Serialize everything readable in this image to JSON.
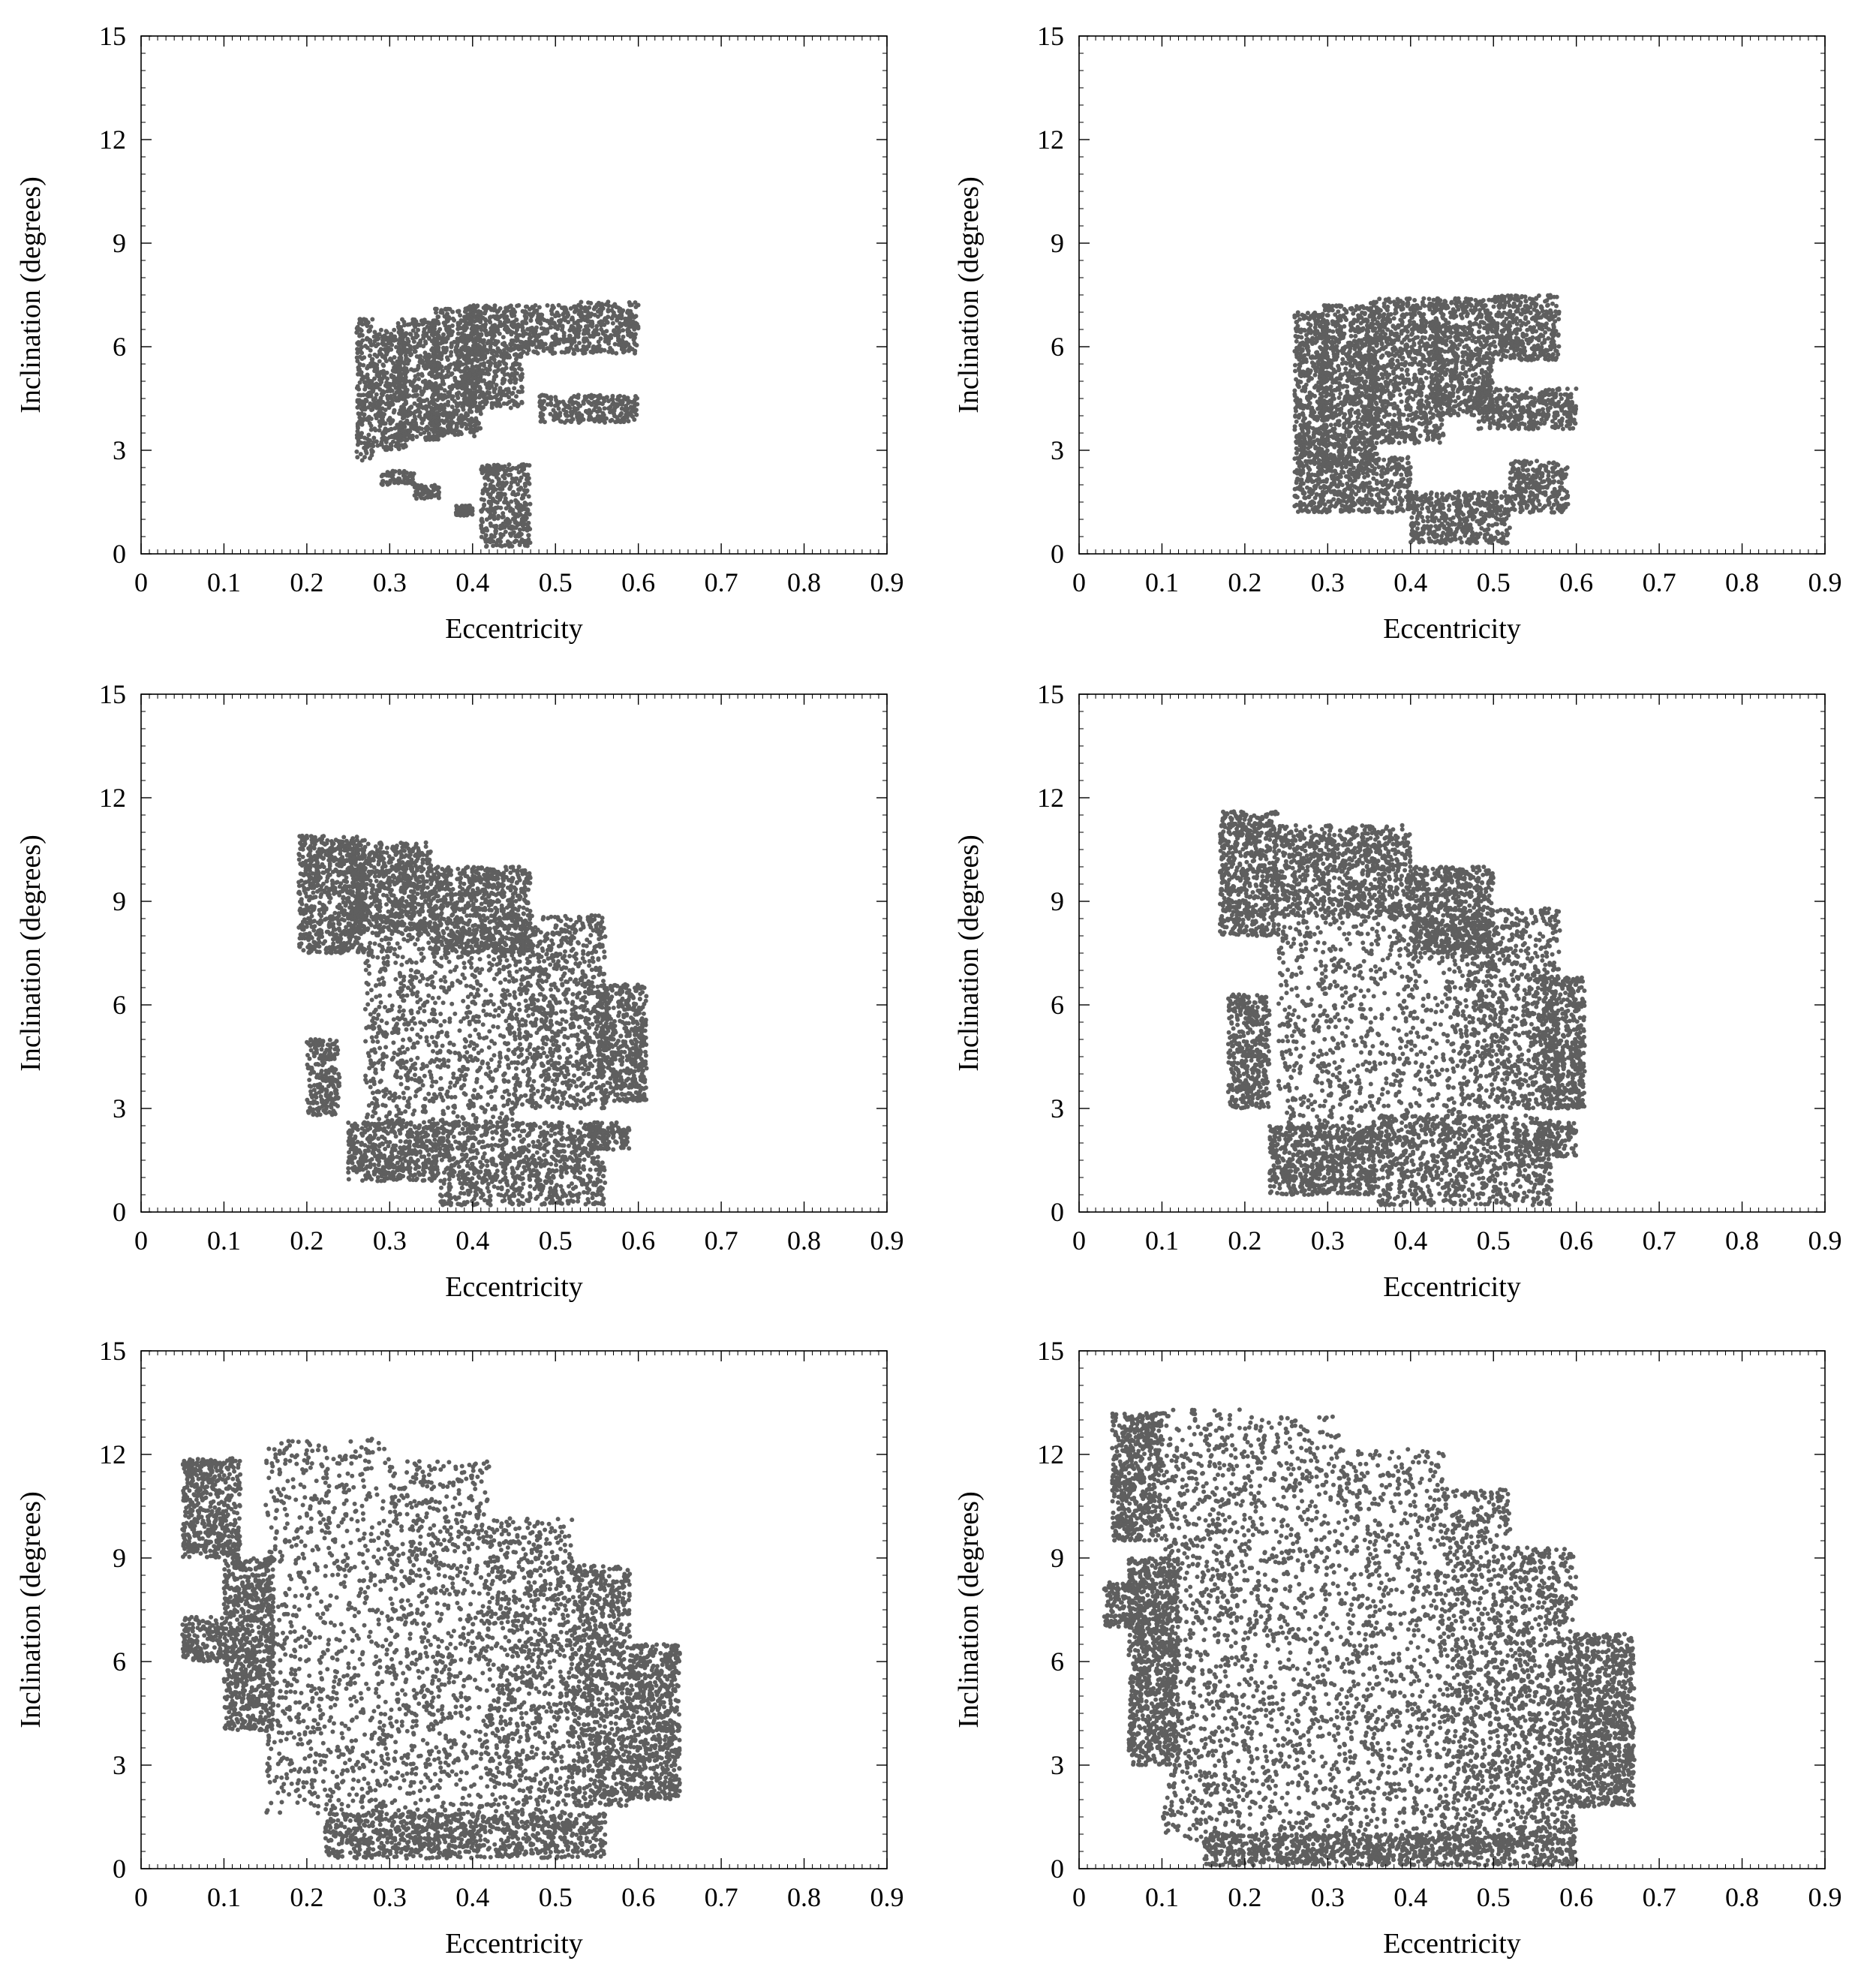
{
  "chart_data": [
    {
      "type": "scatter",
      "xlabel": "Eccentricity",
      "ylabel": "Inclination (degrees)",
      "xlim": [
        0,
        0.9
      ],
      "ylim": [
        0,
        15
      ],
      "xticks": [
        "0",
        "0.1",
        "0.2",
        "0.3",
        "0.4",
        "0.5",
        "0.6",
        "0.7",
        "0.8",
        "0.9"
      ],
      "yticks": [
        "0",
        "3",
        "6",
        "9",
        "12",
        "15"
      ],
      "point_color": "#5f5f5f",
      "grid": false,
      "regions": [
        {
          "e": [
            0.26,
            0.28
          ],
          "i": [
            2.7,
            6.8
          ]
        },
        {
          "e": [
            0.28,
            0.32
          ],
          "i": [
            3.0,
            6.5
          ]
        },
        {
          "e": [
            0.31,
            0.36
          ],
          "i": [
            3.3,
            6.8
          ]
        },
        {
          "e": [
            0.35,
            0.41
          ],
          "i": [
            3.4,
            7.1
          ]
        },
        {
          "e": [
            0.39,
            0.46
          ],
          "i": [
            4.2,
            7.2
          ]
        },
        {
          "e": [
            0.46,
            0.52
          ],
          "i": [
            5.8,
            7.2
          ]
        },
        {
          "e": [
            0.52,
            0.6
          ],
          "i": [
            5.8,
            7.3
          ]
        },
        {
          "e": [
            0.48,
            0.6
          ],
          "i": [
            3.8,
            4.6
          ]
        },
        {
          "e": [
            0.29,
            0.33
          ],
          "i": [
            2.0,
            2.4
          ]
        },
        {
          "e": [
            0.33,
            0.36
          ],
          "i": [
            1.6,
            2.0
          ]
        },
        {
          "e": [
            0.38,
            0.4
          ],
          "i": [
            1.1,
            1.4
          ]
        },
        {
          "e": [
            0.41,
            0.47
          ],
          "i": [
            0.2,
            2.6
          ]
        }
      ]
    },
    {
      "type": "scatter",
      "xlabel": "Eccentricity",
      "ylabel": "Inclination (degrees)",
      "xlim": [
        0,
        0.9
      ],
      "ylim": [
        0,
        15
      ],
      "xticks": [
        "0",
        "0.1",
        "0.2",
        "0.3",
        "0.4",
        "0.5",
        "0.6",
        "0.7",
        "0.8",
        "0.9"
      ],
      "yticks": [
        "0",
        "3",
        "6",
        "9",
        "12",
        "15"
      ],
      "point_color": "#5f5f5f",
      "grid": false,
      "regions": [
        {
          "e": [
            0.26,
            0.3
          ],
          "i": [
            2.8,
            7.0
          ]
        },
        {
          "e": [
            0.29,
            0.36
          ],
          "i": [
            2.6,
            7.2
          ]
        },
        {
          "e": [
            0.35,
            0.44
          ],
          "i": [
            3.2,
            7.4
          ]
        },
        {
          "e": [
            0.43,
            0.5
          ],
          "i": [
            4.0,
            7.4
          ]
        },
        {
          "e": [
            0.5,
            0.58
          ],
          "i": [
            5.6,
            7.5
          ]
        },
        {
          "e": [
            0.48,
            0.6
          ],
          "i": [
            3.6,
            4.8
          ]
        },
        {
          "e": [
            0.26,
            0.4
          ],
          "i": [
            1.2,
            2.8
          ]
        },
        {
          "e": [
            0.4,
            0.52
          ],
          "i": [
            0.3,
            1.8
          ]
        },
        {
          "e": [
            0.52,
            0.59
          ],
          "i": [
            1.2,
            2.7
          ]
        }
      ]
    },
    {
      "type": "scatter",
      "xlabel": "Eccentricity",
      "ylabel": "Inclination (degrees)",
      "xlim": [
        0,
        0.9
      ],
      "ylim": [
        0,
        15
      ],
      "xticks": [
        "0",
        "0.1",
        "0.2",
        "0.3",
        "0.4",
        "0.5",
        "0.6",
        "0.7",
        "0.8",
        "0.9"
      ],
      "yticks": [
        "0",
        "3",
        "6",
        "9",
        "12",
        "15"
      ],
      "point_color": "#5f5f5f",
      "grid": false,
      "regions": [
        {
          "e": [
            0.19,
            0.27
          ],
          "i": [
            7.5,
            10.9
          ]
        },
        {
          "e": [
            0.25,
            0.35
          ],
          "i": [
            8.0,
            10.7
          ]
        },
        {
          "e": [
            0.35,
            0.47
          ],
          "i": [
            7.5,
            10.0
          ]
        },
        {
          "e": [
            0.27,
            0.45
          ],
          "i": [
            2.4,
            8.0
          ]
        },
        {
          "e": [
            0.45,
            0.56
          ],
          "i": [
            3.0,
            8.6
          ]
        },
        {
          "e": [
            0.55,
            0.61
          ],
          "i": [
            3.2,
            6.6
          ]
        },
        {
          "e": [
            0.2,
            0.24
          ],
          "i": [
            2.8,
            5.0
          ]
        },
        {
          "e": [
            0.25,
            0.36
          ],
          "i": [
            0.9,
            2.6
          ]
        },
        {
          "e": [
            0.36,
            0.56
          ],
          "i": [
            0.2,
            2.6
          ]
        },
        {
          "e": [
            0.54,
            0.59
          ],
          "i": [
            1.8,
            2.6
          ]
        }
      ]
    },
    {
      "type": "scatter",
      "xlabel": "Eccentricity",
      "ylabel": "Inclination (degrees)",
      "xlim": [
        0,
        0.9
      ],
      "ylim": [
        0,
        15
      ],
      "xticks": [
        "0",
        "0.1",
        "0.2",
        "0.3",
        "0.4",
        "0.5",
        "0.6",
        "0.7",
        "0.8",
        "0.9"
      ],
      "yticks": [
        "0",
        "3",
        "6",
        "9",
        "12",
        "15"
      ],
      "point_color": "#5f5f5f",
      "grid": false,
      "regions": [
        {
          "e": [
            0.17,
            0.24
          ],
          "i": [
            8.0,
            11.6
          ]
        },
        {
          "e": [
            0.24,
            0.4
          ],
          "i": [
            8.5,
            11.2
          ]
        },
        {
          "e": [
            0.4,
            0.5
          ],
          "i": [
            7.5,
            10.0
          ]
        },
        {
          "e": [
            0.24,
            0.46
          ],
          "i": [
            2.0,
            8.5
          ]
        },
        {
          "e": [
            0.46,
            0.58
          ],
          "i": [
            3.0,
            8.8
          ]
        },
        {
          "e": [
            0.56,
            0.61
          ],
          "i": [
            3.0,
            6.8
          ]
        },
        {
          "e": [
            0.18,
            0.23
          ],
          "i": [
            3.0,
            6.3
          ]
        },
        {
          "e": [
            0.23,
            0.36
          ],
          "i": [
            0.5,
            2.5
          ]
        },
        {
          "e": [
            0.36,
            0.57
          ],
          "i": [
            0.2,
            2.8
          ]
        },
        {
          "e": [
            0.55,
            0.6
          ],
          "i": [
            1.6,
            2.6
          ]
        }
      ]
    },
    {
      "type": "scatter",
      "xlabel": "Eccentricity",
      "ylabel": "Inclination (degrees)",
      "xlim": [
        0,
        0.9
      ],
      "ylim": [
        0,
        15
      ],
      "xticks": [
        "0",
        "0.1",
        "0.2",
        "0.3",
        "0.4",
        "0.5",
        "0.6",
        "0.7",
        "0.8",
        "0.9"
      ],
      "yticks": [
        "0",
        "3",
        "6",
        "9",
        "12",
        "15"
      ],
      "point_color": "#5f5f5f",
      "grid": false,
      "regions": [
        {
          "e": [
            0.15,
            0.3
          ],
          "i": [
            1.5,
            12.5
          ]
        },
        {
          "e": [
            0.3,
            0.42
          ],
          "i": [
            1.2,
            11.8
          ]
        },
        {
          "e": [
            0.42,
            0.52
          ],
          "i": [
            1.2,
            10.2
          ]
        },
        {
          "e": [
            0.52,
            0.59
          ],
          "i": [
            1.8,
            8.8
          ]
        },
        {
          "e": [
            0.59,
            0.65
          ],
          "i": [
            2.0,
            6.5
          ]
        },
        {
          "e": [
            0.22,
            0.56
          ],
          "i": [
            0.3,
            1.6
          ]
        },
        {
          "e": [
            0.05,
            0.12
          ],
          "i": [
            9.0,
            11.9
          ]
        },
        {
          "e": [
            0.05,
            0.1
          ],
          "i": [
            6.0,
            7.3
          ]
        },
        {
          "e": [
            0.1,
            0.16
          ],
          "i": [
            4.0,
            9.0
          ]
        }
      ]
    },
    {
      "type": "scatter",
      "xlabel": "Eccentricity",
      "ylabel": "Inclination (degrees)",
      "xlim": [
        0,
        0.9
      ],
      "ylim": [
        0,
        15
      ],
      "xticks": [
        "0",
        "0.1",
        "0.2",
        "0.3",
        "0.4",
        "0.5",
        "0.6",
        "0.7",
        "0.8",
        "0.9"
      ],
      "yticks": [
        "0",
        "3",
        "6",
        "9",
        "12",
        "15"
      ],
      "point_color": "#5f5f5f",
      "grid": false,
      "regions": [
        {
          "e": [
            0.03,
            0.08
          ],
          "i": [
            7.0,
            8.3
          ]
        },
        {
          "e": [
            0.04,
            0.1
          ],
          "i": [
            9.5,
            13.2
          ]
        },
        {
          "e": [
            0.06,
            0.12
          ],
          "i": [
            3.0,
            9.0
          ]
        },
        {
          "e": [
            0.1,
            0.2
          ],
          "i": [
            0.8,
            13.3
          ]
        },
        {
          "e": [
            0.2,
            0.32
          ],
          "i": [
            0.2,
            13.1
          ]
        },
        {
          "e": [
            0.32,
            0.44
          ],
          "i": [
            0.3,
            12.2
          ]
        },
        {
          "e": [
            0.44,
            0.52
          ],
          "i": [
            0.5,
            11.0
          ]
        },
        {
          "e": [
            0.52,
            0.6
          ],
          "i": [
            1.0,
            9.3
          ]
        },
        {
          "e": [
            0.6,
            0.67
          ],
          "i": [
            1.8,
            6.8
          ]
        },
        {
          "e": [
            0.15,
            0.6
          ],
          "i": [
            0.1,
            1.0
          ]
        }
      ]
    }
  ]
}
